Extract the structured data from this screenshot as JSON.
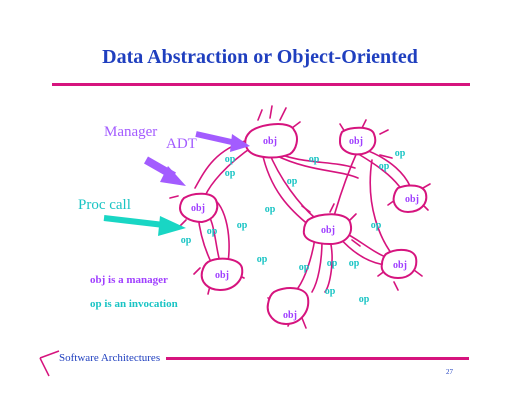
{
  "slide": {
    "title": "Data Abstraction or Object-Oriented",
    "callouts": {
      "manager": "Manager",
      "adt": "ADT",
      "proc_call": "Proc call"
    },
    "node_label": "obj",
    "edge_label": "op",
    "legend": {
      "obj": "obj is a manager",
      "op": "op is an invocation"
    },
    "footer": "Software Architectures",
    "page_number": "27"
  },
  "colors": {
    "title": "#1f3fbf",
    "rule": "#d6147e",
    "obj": "#a040ff",
    "op": "#19c4c4",
    "arrow_purple": "#a35cff",
    "arrow_cyan": "#19d6c4"
  }
}
